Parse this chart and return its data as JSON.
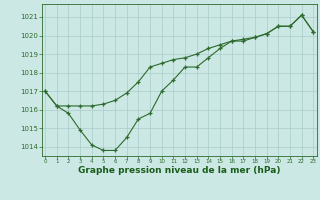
{
  "line1_x": [
    0,
    1,
    2,
    3,
    4,
    5,
    6,
    7,
    8,
    9,
    10,
    11,
    12,
    13,
    14,
    15,
    16,
    17,
    18,
    19,
    20,
    21,
    22,
    23
  ],
  "line1_y": [
    1017.0,
    1016.2,
    1015.8,
    1014.9,
    1014.1,
    1013.8,
    1013.8,
    1014.5,
    1015.5,
    1015.8,
    1017.0,
    1017.6,
    1018.3,
    1018.3,
    1018.8,
    1019.3,
    1019.7,
    1019.7,
    1019.9,
    1020.1,
    1020.5,
    1020.5,
    1021.1,
    1020.2
  ],
  "line2_x": [
    0,
    1,
    2,
    3,
    4,
    5,
    6,
    7,
    8,
    9,
    10,
    11,
    12,
    13,
    14,
    15,
    16,
    17,
    18,
    19,
    20,
    21,
    22,
    23
  ],
  "line2_y": [
    1017.0,
    1016.2,
    1016.2,
    1016.2,
    1016.2,
    1016.3,
    1016.5,
    1016.9,
    1017.5,
    1018.3,
    1018.5,
    1018.7,
    1018.8,
    1019.0,
    1019.3,
    1019.5,
    1019.7,
    1019.8,
    1019.9,
    1020.1,
    1020.5,
    1020.5,
    1021.1,
    1020.2
  ],
  "bg_color": "#cce8e4",
  "grid_color": "#aaccca",
  "line_color": "#2d6a2d",
  "marker": "+",
  "xlabel": "Graphe pression niveau de la mer (hPa)",
  "xlabel_color": "#1a5c1a",
  "ylabel_ticks": [
    1014,
    1015,
    1016,
    1017,
    1018,
    1019,
    1020,
    1021
  ],
  "xtick_labels": [
    "0",
    "1",
    "2",
    "3",
    "4",
    "5",
    "6",
    "7",
    "8",
    "9",
    "10",
    "11",
    "12",
    "13",
    "14",
    "15",
    "16",
    "17",
    "18",
    "19",
    "20",
    "21",
    "22",
    "23"
  ],
  "ylim": [
    1013.5,
    1021.7
  ],
  "xlim": [
    -0.3,
    23.3
  ]
}
